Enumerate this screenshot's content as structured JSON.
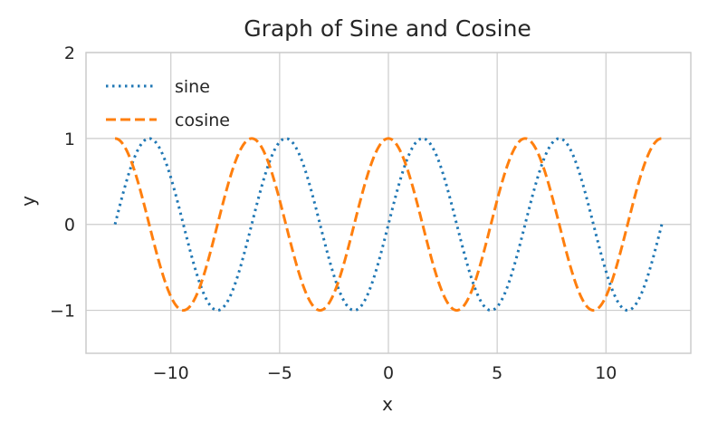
{
  "chart_data": {
    "type": "line",
    "title": "Graph of Sine and Cosine",
    "xlabel": "x",
    "ylabel": "y",
    "xlim": [
      -13.9,
      13.9
    ],
    "ylim": [
      -1.5,
      2.0
    ],
    "x_ticks": [
      -10,
      -5,
      0,
      5,
      10
    ],
    "x_tick_labels": [
      "−10",
      "−5",
      "0",
      "5",
      "10"
    ],
    "y_ticks": [
      -1,
      0,
      1,
      2
    ],
    "y_tick_labels": [
      "−1",
      "0",
      "1",
      "2"
    ],
    "grid": true,
    "legend": "top-left",
    "x_range": [
      -12.566,
      12.566
    ],
    "series": [
      {
        "name": "sine",
        "function": "sin",
        "style": "dotted",
        "color": "#1f77b4"
      },
      {
        "name": "cosine",
        "function": "cos",
        "style": "dashed",
        "color": "#ff7f0e"
      }
    ]
  }
}
